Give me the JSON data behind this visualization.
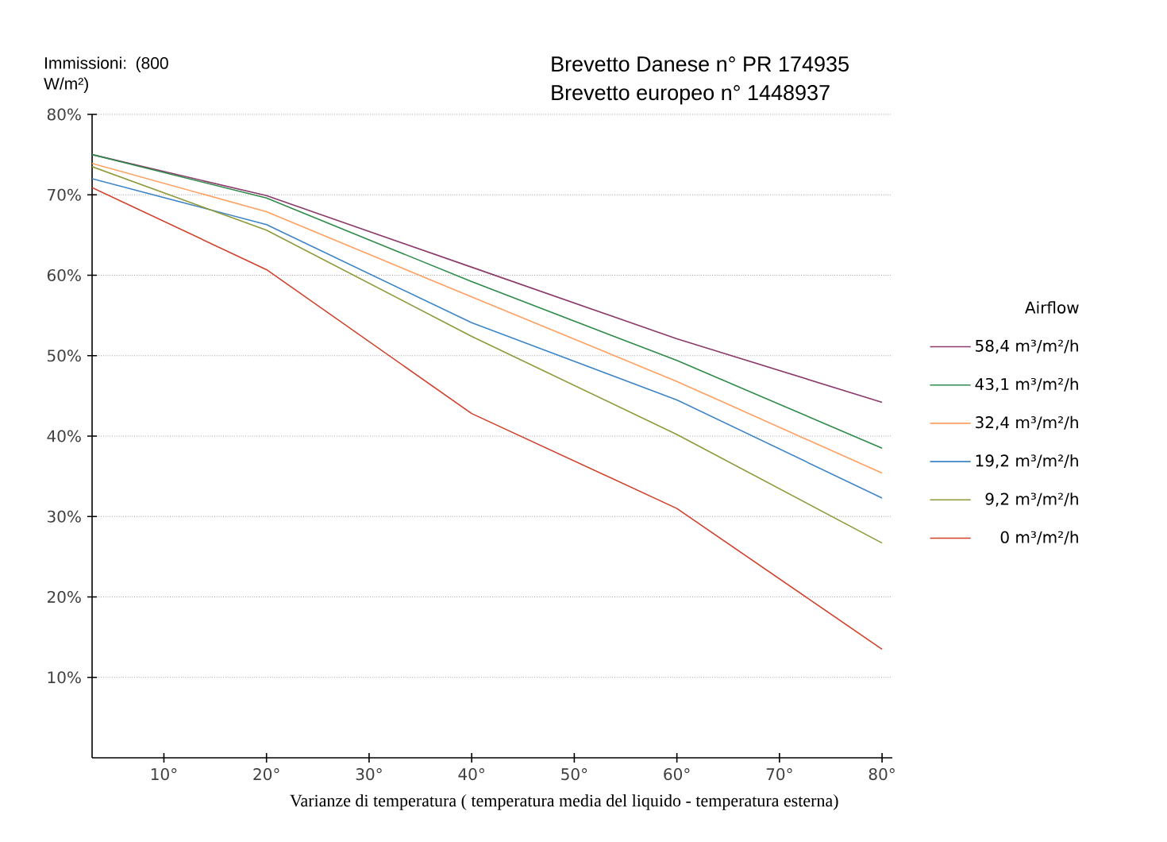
{
  "chart_data": {
    "type": "line",
    "ylabel": "Immissioni: (800 W/m²)",
    "xlabel": "Varianze di temperatura ( temperatura media del liquido - temperatura esterna)",
    "legend_title": "Airflow",
    "annotations": [
      "Brevetto Danese n° PR 174935",
      "Brevetto europeo n° 1448937"
    ],
    "xlim": [
      3,
      81
    ],
    "ylim": [
      0,
      80
    ],
    "xticks": [
      {
        "value": 10,
        "label": "10°"
      },
      {
        "value": 20,
        "label": "20°"
      },
      {
        "value": 30,
        "label": "30°"
      },
      {
        "value": 40,
        "label": "40°"
      },
      {
        "value": 50,
        "label": "50°"
      },
      {
        "value": 60,
        "label": "60°"
      },
      {
        "value": 70,
        "label": "70°"
      },
      {
        "value": 80,
        "label": "80°"
      }
    ],
    "yticks": [
      {
        "value": 10,
        "label": "10%"
      },
      {
        "value": 20,
        "label": "20%"
      },
      {
        "value": 30,
        "label": "30%"
      },
      {
        "value": 40,
        "label": "40%"
      },
      {
        "value": 50,
        "label": "50%"
      },
      {
        "value": 60,
        "label": "60%"
      },
      {
        "value": 70,
        "label": "70%"
      },
      {
        "value": 80,
        "label": "80%"
      }
    ],
    "grid": "y",
    "legend": "right",
    "x": [
      3,
      20,
      40,
      60,
      80
    ],
    "series": [
      {
        "name": "58,4 m³/m²/h",
        "color": "#8b3a6b",
        "values": [
          75.0,
          69.9,
          61.0,
          52.1,
          44.2
        ]
      },
      {
        "name": "43,1 m³/m²/h",
        "color": "#2e8b4a",
        "values": [
          75.0,
          69.6,
          59.2,
          49.4,
          38.5
        ]
      },
      {
        "name": "32,4 m³/m²/h",
        "color": "#ff9f60",
        "values": [
          73.9,
          67.9,
          57.3,
          46.8,
          35.4
        ]
      },
      {
        "name": "19,2 m³/m²/h",
        "color": "#3d85c6",
        "values": [
          72.0,
          66.3,
          54.1,
          44.5,
          32.3
        ]
      },
      {
        "name": "9,2 m³/m²/h",
        "color": "#8f9a3a",
        "values": [
          73.5,
          65.6,
          52.4,
          40.2,
          26.7
        ]
      },
      {
        "name": "0 m³/m²/h",
        "color": "#d0402a",
        "values": [
          70.9,
          60.7,
          42.8,
          31.0,
          13.5
        ]
      }
    ]
  }
}
